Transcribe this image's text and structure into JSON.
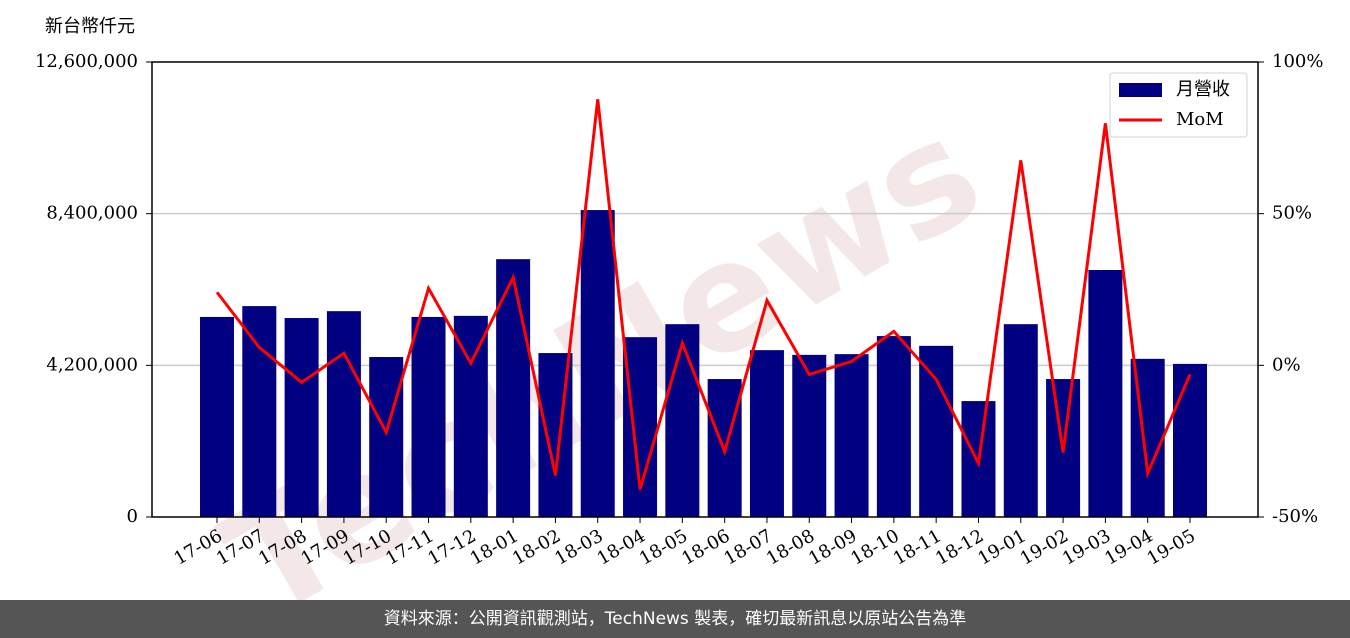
{
  "chart_data": {
    "type": "bar",
    "y_label": "新台幣仟元",
    "watermark": "TechNews",
    "footer": "資料來源：公開資訊觀測站，TechNews 製表，確切最新訊息以原站公告為準",
    "categories": [
      "17-06",
      "17-07",
      "17-08",
      "17-09",
      "17-10",
      "17-11",
      "17-12",
      "18-01",
      "18-02",
      "18-03",
      "18-04",
      "18-05",
      "18-06",
      "18-07",
      "18-08",
      "18-09",
      "18-10",
      "18-11",
      "18-12",
      "19-01",
      "19-02",
      "19-03",
      "19-04",
      "19-05"
    ],
    "series": [
      {
        "name": "月營收",
        "type": "bar",
        "color": "#000080",
        "values": [
          5540000,
          5840000,
          5510000,
          5700000,
          4430000,
          5540000,
          5570000,
          7140000,
          4540000,
          8500000,
          4980000,
          5340000,
          3820000,
          4620000,
          4490000,
          4510000,
          5010000,
          4740000,
          3210000,
          5340000,
          3820000,
          6840000,
          4380000,
          4240000
        ]
      },
      {
        "name": "MoM",
        "type": "line",
        "color": "#ff0000",
        "axis": "y2",
        "values": [
          24.1,
          5.9,
          -5.6,
          4.0,
          -22.1,
          25.4,
          0.7,
          29.0,
          -36.3,
          87.7,
          -40.9,
          7.3,
          -28.4,
          21.4,
          -3.0,
          1.3,
          11.2,
          -4.6,
          -32.3,
          67.6,
          -28.7,
          79.8,
          -35.6,
          -3.0
        ]
      }
    ],
    "ylim": [
      0,
      12600000
    ],
    "yticks": [
      0,
      {
        "value": 4200000,
        "label": "4,200,000"
      },
      {
        "value": 8400000,
        "label": "8,400,000"
      },
      {
        "value": 12600000,
        "label": "12,600,000"
      }
    ],
    "y2lim": [
      -50,
      100
    ],
    "y2ticks": [
      {
        "value": -50,
        "label": "-50%"
      },
      {
        "value": 0,
        "label": "0%"
      },
      {
        "value": 50,
        "label": "50%"
      },
      {
        "value": 100,
        "label": "100%"
      }
    ],
    "grid": true,
    "legend": "upper right"
  }
}
